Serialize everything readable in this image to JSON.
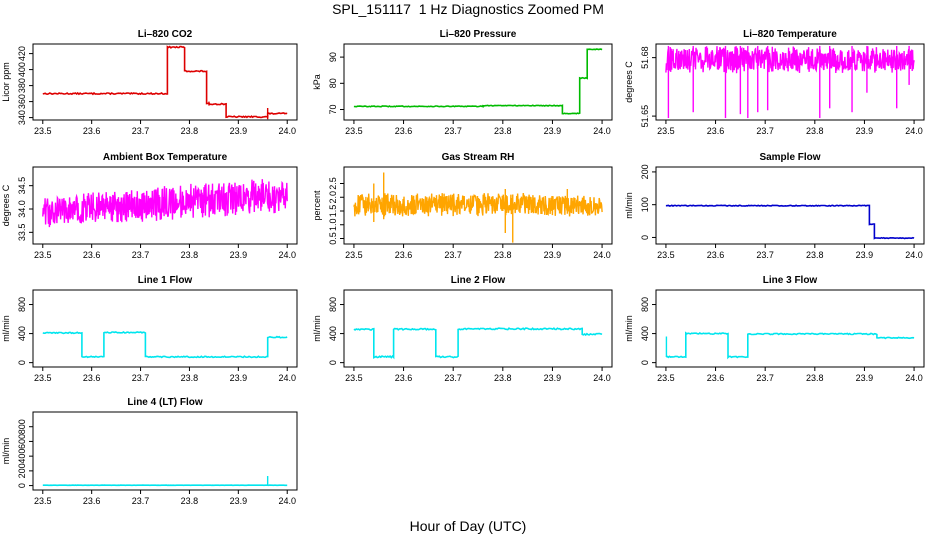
{
  "title": "SPL_151117  1 Hz Diagnostics Zoomed PM",
  "xlabel": "Hour of Day (UTC)",
  "chart_data": [
    {
      "id": "licor-co2",
      "type": "line",
      "title": "Li–820 CO2",
      "ylabel": "Licor ppm",
      "color": "#dd0000",
      "xlim": [
        23.48,
        24.02
      ],
      "ylim": [
        337,
        432
      ],
      "xticks": [
        "23.5",
        "23.6",
        "23.7",
        "23.8",
        "23.9",
        "24.0"
      ],
      "yticks": [
        "340",
        "360",
        "380",
        "400",
        "420"
      ],
      "segments": [
        [
          23.5,
          23.755,
          370
        ],
        [
          23.755,
          23.79,
          428
        ],
        [
          23.79,
          23.835,
          398
        ],
        [
          23.835,
          23.875,
          357
        ],
        [
          23.875,
          23.96,
          341
        ],
        [
          23.96,
          24.0,
          345
        ]
      ],
      "noise": 0.8,
      "spikes": [
        [
          23.96,
          338,
          352
        ],
        [
          23.84,
          355,
          360
        ]
      ]
    },
    {
      "id": "licor-pressure",
      "type": "line",
      "title": "Li–820 Pressure",
      "ylabel": "kPa",
      "color": "#00bb00",
      "xlim": [
        23.48,
        24.02
      ],
      "ylim": [
        66,
        95
      ],
      "xticks": [
        "23.5",
        "23.6",
        "23.7",
        "23.8",
        "23.9",
        "24.0"
      ],
      "yticks": [
        "70",
        "80",
        "90"
      ],
      "segments": [
        [
          23.5,
          23.76,
          71.2
        ],
        [
          23.76,
          23.92,
          71.5
        ],
        [
          23.92,
          23.955,
          68.5
        ],
        [
          23.955,
          23.97,
          82
        ],
        [
          23.97,
          24.0,
          93
        ]
      ],
      "noise": 0.15,
      "spikes": []
    },
    {
      "id": "licor-temperature",
      "type": "line",
      "title": "Li–820 Temperature",
      "ylabel": "degrees C",
      "color": "#ff00ff",
      "xlim": [
        23.48,
        24.02
      ],
      "ylim": [
        51.648,
        51.687
      ],
      "xticks": [
        "23.5",
        "23.6",
        "23.7",
        "23.8",
        "23.9",
        "24.0"
      ],
      "yticks": [
        "51.65",
        "51.68"
      ],
      "segments": [
        [
          23.5,
          24.0,
          51.675
        ]
      ],
      "noise": 0.0,
      "band": [
        51.672,
        51.686
      ],
      "spikes": [
        [
          23.505,
          51.649,
          51.686
        ],
        [
          23.555,
          51.652,
          51.686
        ],
        [
          23.62,
          51.649,
          51.686
        ],
        [
          23.65,
          51.651,
          51.686
        ],
        [
          23.665,
          51.649,
          51.686
        ],
        [
          23.685,
          51.652,
          51.686
        ],
        [
          23.705,
          51.653,
          51.686
        ],
        [
          23.81,
          51.649,
          51.686
        ],
        [
          23.83,
          51.654,
          51.686
        ],
        [
          23.875,
          51.652,
          51.686
        ],
        [
          23.905,
          51.662,
          51.686
        ],
        [
          23.965,
          51.654,
          51.686
        ],
        [
          23.99,
          51.666,
          51.686
        ]
      ]
    },
    {
      "id": "ambient-box-temperature",
      "type": "line",
      "title": "Ambient Box Temperature",
      "ylabel": "degrees C",
      "color": "#ff00ff",
      "xlim": [
        23.48,
        24.02
      ],
      "ylim": [
        33.25,
        34.9
      ],
      "xticks": [
        "23.5",
        "23.6",
        "23.7",
        "23.8",
        "23.9",
        "24.0"
      ],
      "yticks": [
        "33.5",
        "34.0",
        "34.5"
      ],
      "segments": [
        [
          23.5,
          24.0,
          34.0
        ]
      ],
      "noise": 0.0,
      "bandTrend": [
        [
          23.5,
          33.6,
          34.3
        ],
        [
          24.0,
          33.9,
          34.7
        ]
      ],
      "spikes": []
    },
    {
      "id": "gas-stream-rh",
      "type": "line",
      "title": "Gas Stream RH",
      "ylabel": "percent",
      "color": "#ffa500",
      "xlim": [
        23.48,
        24.02
      ],
      "ylim": [
        0.3,
        3.1
      ],
      "xticks": [
        "23.5",
        "23.6",
        "23.7",
        "23.8",
        "23.9",
        "24.0"
      ],
      "yticks": [
        "0.5",
        "1.0",
        "1.5",
        "2.0",
        "2.5"
      ],
      "segments": [
        [
          23.5,
          24.0,
          1.75
        ]
      ],
      "noise": 0.0,
      "band": [
        1.3,
        2.15
      ],
      "spikes": [
        [
          23.56,
          1.2,
          2.9
        ],
        [
          23.805,
          0.7,
          2.3
        ],
        [
          23.82,
          0.35,
          2.1
        ],
        [
          23.54,
          1.1,
          2.5
        ],
        [
          23.93,
          1.4,
          2.3
        ]
      ]
    },
    {
      "id": "sample-flow",
      "type": "line",
      "title": "Sample Flow",
      "ylabel": "ml/min",
      "color": "#0000cc",
      "xlim": [
        23.48,
        24.02
      ],
      "ylim": [
        -20,
        215
      ],
      "xticks": [
        "23.5",
        "23.6",
        "23.7",
        "23.8",
        "23.9",
        "24.0"
      ],
      "yticks": [
        "0",
        "100",
        "200"
      ],
      "segments": [
        [
          23.5,
          23.91,
          97
        ],
        [
          23.91,
          23.92,
          40
        ],
        [
          23.92,
          24.0,
          -2
        ]
      ],
      "noise": 1.2,
      "spikes": []
    },
    {
      "id": "line-1-flow",
      "type": "line",
      "title": "Line 1 Flow",
      "ylabel": "ml/min",
      "color": "#00e5ee",
      "xlim": [
        23.48,
        24.02
      ],
      "ylim": [
        -60,
        1000
      ],
      "xticks": [
        "23.5",
        "23.6",
        "23.7",
        "23.8",
        "23.9",
        "24.0"
      ],
      "yticks": [
        "0",
        "400",
        "800"
      ],
      "segments": [
        [
          23.5,
          23.58,
          410
        ],
        [
          23.58,
          23.625,
          80
        ],
        [
          23.625,
          23.71,
          415
        ],
        [
          23.71,
          23.96,
          80
        ],
        [
          23.96,
          24.0,
          350
        ]
      ],
      "noise": 8,
      "spikes": []
    },
    {
      "id": "line-2-flow",
      "type": "line",
      "title": "Line 2 Flow",
      "ylabel": "ml/min",
      "color": "#00e5ee",
      "xlim": [
        23.48,
        24.02
      ],
      "ylim": [
        -60,
        1000
      ],
      "xticks": [
        "23.5",
        "23.6",
        "23.7",
        "23.8",
        "23.9",
        "24.0"
      ],
      "yticks": [
        "0",
        "400",
        "800"
      ],
      "segments": [
        [
          23.5,
          23.54,
          460
        ],
        [
          23.54,
          23.58,
          80
        ],
        [
          23.58,
          23.665,
          460
        ],
        [
          23.665,
          23.71,
          80
        ],
        [
          23.71,
          23.96,
          465
        ],
        [
          23.96,
          24.0,
          390
        ]
      ],
      "noise": 10,
      "spikes": []
    },
    {
      "id": "line-3-flow",
      "type": "line",
      "title": "Line 3 Flow",
      "ylabel": "ml/min",
      "color": "#00e5ee",
      "xlim": [
        23.48,
        24.02
      ],
      "ylim": [
        -60,
        1000
      ],
      "xticks": [
        "23.5",
        "23.6",
        "23.7",
        "23.8",
        "23.9",
        "24.0"
      ],
      "yticks": [
        "0",
        "400",
        "800"
      ],
      "segments": [
        [
          23.5,
          23.54,
          80
        ],
        [
          23.54,
          23.625,
          400
        ],
        [
          23.625,
          23.665,
          80
        ],
        [
          23.665,
          23.925,
          395
        ],
        [
          23.925,
          24.0,
          340
        ]
      ],
      "noise": 8,
      "spikes": [
        [
          23.501,
          80,
          360
        ]
      ]
    },
    {
      "id": "line-4-lt-flow",
      "type": "line",
      "title": "Line 4 (LT) Flow",
      "ylabel": "ml/min",
      "color": "#00e5ee",
      "xlim": [
        23.48,
        24.02
      ],
      "ylim": [
        -60,
        1000
      ],
      "xticks": [
        "23.5",
        "23.6",
        "23.7",
        "23.8",
        "23.9",
        "24.0"
      ],
      "yticks": [
        "0",
        "200",
        "400",
        "600",
        "800"
      ],
      "segments": [
        [
          23.5,
          24.0,
          5
        ]
      ],
      "noise": 1,
      "spikes": [
        [
          23.96,
          0,
          130
        ]
      ]
    }
  ]
}
